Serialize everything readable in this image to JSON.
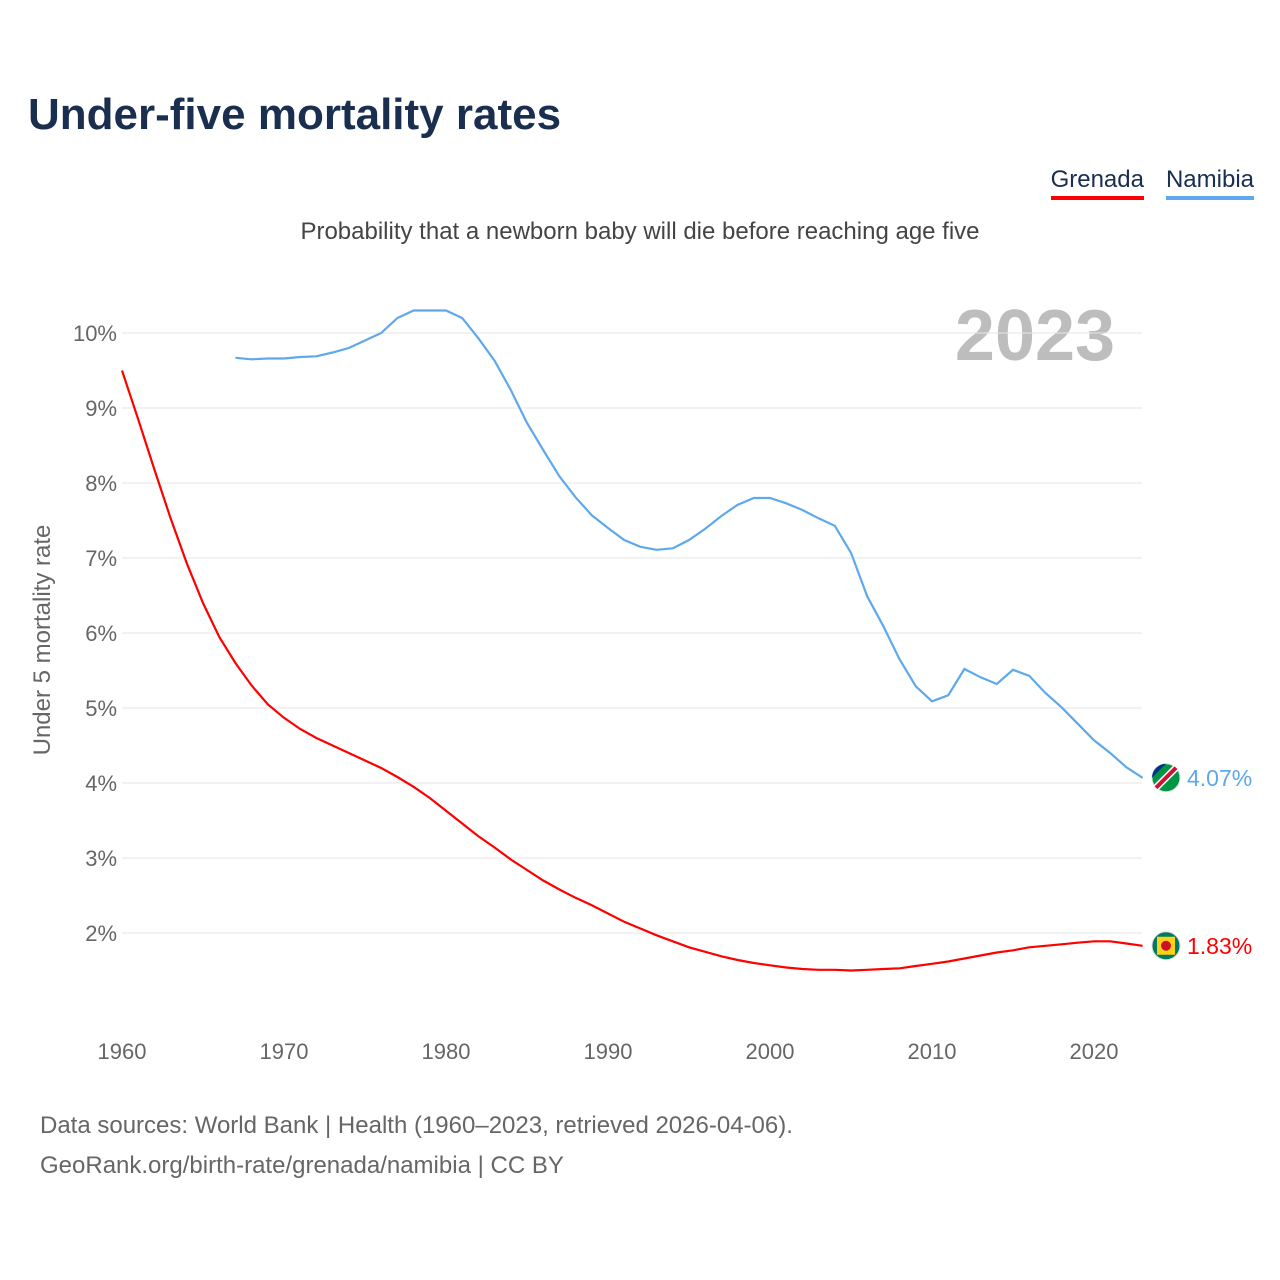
{
  "title": "Under-five mortality rates",
  "subtitle": "Probability that a newborn baby will die before reaching age five",
  "year_label": "2023",
  "source_line1": "Data sources: World Bank | Health (1960–2023, retrieved 2026-04-06).",
  "source_line2": "GeoRank.org/birth-rate/grenada/namibia | CC BY",
  "chart_data": {
    "type": "line",
    "ylabel": "Under 5 mortality rate",
    "ylim": [
      1,
      10.3
    ],
    "xlim": [
      1960,
      2023
    ],
    "yticks": [
      2,
      3,
      4,
      5,
      6,
      7,
      8,
      9,
      10
    ],
    "ytick_labels": [
      "2%",
      "3%",
      "4%",
      "5%",
      "6%",
      "7%",
      "8%",
      "9%",
      "10%"
    ],
    "xticks": [
      1960,
      1970,
      1980,
      1990,
      2000,
      2010,
      2020
    ],
    "xtick_labels": [
      "1960",
      "1970",
      "1980",
      "1990",
      "2000",
      "2010",
      "2020"
    ],
    "grid": true,
    "legend": "top-right",
    "series": [
      {
        "name": "Grenada",
        "color": "#ff0000",
        "end_label": "1.83%",
        "start": 1960,
        "values": [
          9.5,
          8.85,
          8.18,
          7.53,
          6.93,
          6.4,
          5.95,
          5.6,
          5.3,
          5.05,
          4.87,
          4.72,
          4.6,
          4.5,
          4.4,
          4.3,
          4.2,
          4.08,
          3.95,
          3.8,
          3.63,
          3.46,
          3.29,
          3.14,
          2.98,
          2.84,
          2.7,
          2.58,
          2.47,
          2.37,
          2.26,
          2.15,
          2.06,
          1.97,
          1.89,
          1.81,
          1.75,
          1.69,
          1.64,
          1.6,
          1.57,
          1.54,
          1.52,
          1.51,
          1.51,
          1.5,
          1.51,
          1.52,
          1.53,
          1.56,
          1.59,
          1.62,
          1.66,
          1.7,
          1.74,
          1.77,
          1.81,
          1.83,
          1.85,
          1.87,
          1.89,
          1.89,
          1.86,
          1.83
        ]
      },
      {
        "name": "Namibia",
        "color": "#5ea8ec",
        "end_label": "4.07%",
        "start": 1967,
        "values": [
          9.67,
          9.65,
          9.66,
          9.66,
          9.68,
          9.69,
          9.74,
          9.8,
          9.9,
          10.0,
          10.2,
          10.3,
          10.3,
          10.3,
          10.2,
          9.93,
          9.63,
          9.24,
          8.8,
          8.44,
          8.09,
          7.81,
          7.57,
          7.4,
          7.24,
          7.15,
          7.11,
          7.13,
          7.24,
          7.39,
          7.56,
          7.71,
          7.8,
          7.8,
          7.73,
          7.64,
          7.53,
          7.43,
          7.07,
          6.49,
          6.09,
          5.65,
          5.29,
          5.09,
          5.17,
          5.52,
          5.41,
          5.32,
          5.51,
          5.43,
          5.2,
          5.01,
          4.79,
          4.57,
          4.4,
          4.21,
          4.07
        ]
      }
    ]
  }
}
